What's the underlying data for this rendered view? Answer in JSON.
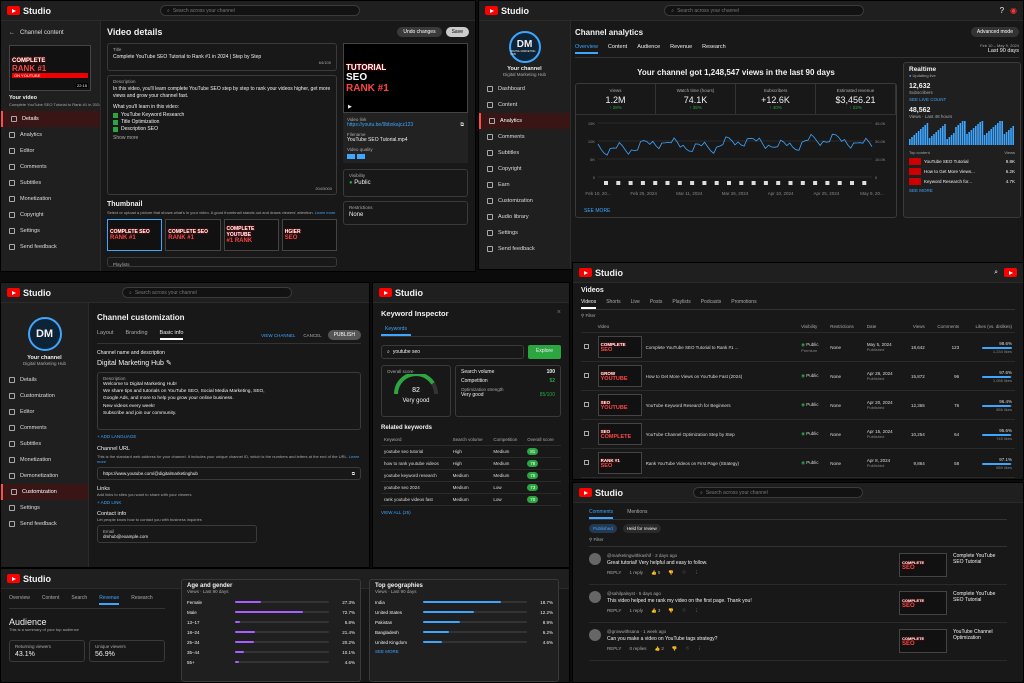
{
  "common": {
    "studio": "Studio",
    "search_placeholder": "Search across your channel"
  },
  "p1": {
    "back_label": "Channel content",
    "title": "Video details",
    "undo": "Undo changes",
    "save": "Save",
    "your_video": "Your video",
    "video_short": "Complete YouTube SEO Tutorial to Rank #1 in 2024 | Step by Step",
    "nav": [
      "Details",
      "Analytics",
      "Editor",
      "Comments",
      "Subtitles",
      "Monetization",
      "Copyright",
      "Settings",
      "Send feedback"
    ],
    "title_label": "Title",
    "title_value": "Complete YouTube SEO Tutorial to Rank #1 in 2024 | Step by Step",
    "title_count": "64/100",
    "desc_label": "Description",
    "desc_intro": "In this video, you'll learn complete YouTube SEO step by step to rank your videos higher, get more views and grow your channel fast.",
    "desc_learn": "What you'll learn in this video:",
    "desc_items": [
      "YouTube Keyword Research",
      "Title Optimization",
      "Description SEO"
    ],
    "show_more": "Show more",
    "desc_count": "204/5000",
    "thumb_title": "Thumbnail",
    "thumb_desc": "Select or upload a picture that shows what's in your video. A good thumbnail stands out and draws viewers' attention.",
    "learn_more": "Learn more",
    "link_label": "Video link",
    "link_value": "https://youtu.be/9bbxkajcz123",
    "file_label": "Filename",
    "file_value": "YouTube SEO Tutorial.mp4",
    "quality_label": "Video quality",
    "vis_label": "Visibility",
    "vis_value": "Public",
    "restr_label": "Restrictions",
    "restr_value": "None",
    "playlist_label": "Playlists",
    "thumb_words": {
      "a": "COMPLETE",
      "b": "TUTORIAL",
      "c": "SEO",
      "d": "RANK #1",
      "e": "ON YOUTUBE"
    },
    "timecode": "22:15",
    "thumb_opts": [
      [
        "COMPLETE SEO",
        "RANK #1"
      ],
      [
        "COMPLETE SEO",
        "RANK #1"
      ],
      [
        "COMPLETE YOUTUBE",
        "#1 RANK"
      ],
      [
        "HGIER",
        "SEO"
      ]
    ]
  },
  "p2": {
    "title": "Channel analytics",
    "adv": "Advanced mode",
    "tabs": [
      "Overview",
      "Content",
      "Audience",
      "Revenue",
      "Research"
    ],
    "date_range": "Feb 10 – May 9, 2024",
    "period": "Last 90 days",
    "headline": "Your channel got 1,248,547 views in the last 90 days",
    "your_channel": "Your channel",
    "channel_name": "Digital Marketing Hub",
    "initials": "DM",
    "logo_sub": "DIGITAL MARKETING HUB",
    "nav": [
      "Dashboard",
      "Content",
      "Analytics",
      "Comments",
      "Subtitles",
      "Copyright",
      "Earn",
      "Customization",
      "Audio library",
      "Settings",
      "Send feedback"
    ],
    "stats": [
      {
        "label": "Views",
        "value": "1.2M",
        "delta": "28%"
      },
      {
        "label": "Watch time (hours)",
        "value": "74.1K",
        "delta": "35%"
      },
      {
        "label": "Subscribers",
        "value": "+12.6K",
        "delta": "40%"
      },
      {
        "label": "Estimated revenue",
        "value": "$3,456.21",
        "delta": "22%"
      }
    ],
    "chart_xticks": [
      "Feb 10, 20...",
      "Feb 25, 2024",
      "Mar 11, 2024",
      "Mar 26, 2024",
      "Apr 10, 2024",
      "Apr 25, 2024",
      "May 9, 20..."
    ],
    "chart_yleft": [
      "15K",
      "10K",
      "5K",
      "0"
    ],
    "chart_yright": [
      "45.0K",
      "30.0K",
      "15.0K",
      "0"
    ],
    "see_more": "SEE MORE",
    "realtime": {
      "title": "Realtime",
      "sub": "Updating live",
      "subs": "12,632",
      "subs_label": "Subscribers",
      "see_live": "SEE LIVE COUNT",
      "views": "48,562",
      "views_label": "Views · Last 48 hours",
      "top": "Top content",
      "top_views": "Views",
      "items": [
        [
          "YouTube SEO Tutorial",
          "9.8K"
        ],
        [
          "How to Get More Views...",
          "6.2K"
        ],
        [
          "Keyword Research for...",
          "4.7K"
        ]
      ],
      "more": "SEE MORE"
    }
  },
  "p3": {
    "title": "Channel customization",
    "tabs": [
      "Layout",
      "Branding",
      "Basic info"
    ],
    "view": "VIEW CHANNEL",
    "cancel": "CANCEL",
    "publish": "PUBLISH",
    "your_channel": "Your channel",
    "channel_name": "Digital Marketing Hub",
    "initials": "DM",
    "nav": [
      "Details",
      "Customization",
      "Editor",
      "Comments",
      "Subtitles",
      "Monetization",
      "Demonetization",
      "Customization",
      "Settings",
      "Send feedback"
    ],
    "name_label": "Channel name and description",
    "name": "Digital Marketing Hub",
    "desc_label": "Description",
    "desc": [
      "Welcome to Digital Marketing Hub!",
      "We share tips and tutorials on YouTube SEO, Social Media Marketing, SEO,",
      "Google Ads, and more to help you grow your online business.",
      "New videos every week!",
      "Subscribe and join our community."
    ],
    "add_lang": "ADD LANGUAGE",
    "url_label": "Channel URL",
    "url_desc": "This is the standard web address for your channel. It includes your unique channel ID, which is the numbers and letters at the end of the URL.",
    "learn_more": "Learn more",
    "url": "https://www.youtube.com/@digitalmarketinghub",
    "links_label": "Links",
    "links_desc": "Add links to sites you want to share with your viewers",
    "add_link": "ADD LINK",
    "contact_label": "Contact info",
    "contact_desc": "Let people know how to contact you with business inquiries",
    "email_label": "Email",
    "email": "dmhub@example.com"
  },
  "p4": {
    "title": "Keyword Inspector",
    "tab": "Keywords",
    "query": "youtube seo",
    "explore": "Explore",
    "overall": "Overall score",
    "score": "82",
    "score_sub": "/100",
    "verdict": "Very good",
    "rows": [
      [
        "Search volume",
        "100"
      ],
      [
        "Competition",
        "52"
      ]
    ],
    "opt_label": "Optimization strength",
    "opt_verdict": "Very good",
    "opt_score": "85/100",
    "related": "Related keywords",
    "cols": [
      "Keyword",
      "Search volume",
      "Competition",
      "Overall score"
    ],
    "kws": [
      [
        "youtube seo tutorial",
        "High",
        "Medium",
        "81"
      ],
      [
        "how to rank youtube videos",
        "High",
        "Medium",
        "78"
      ],
      [
        "youtube keyword research",
        "Medium",
        "Medium",
        "75"
      ],
      [
        "youtube seo 2024",
        "Medium",
        "Low",
        "73"
      ],
      [
        "rank youtube videos fast",
        "Medium",
        "Low",
        "70"
      ]
    ],
    "view_all": "VIEW ALL (25)"
  },
  "p5": {
    "title": "Videos",
    "tabs": [
      "Videos",
      "Shorts",
      "Live",
      "Posts",
      "Playlists",
      "Podcasts",
      "Promotions"
    ],
    "filter": "Filter",
    "cols": [
      "Video",
      "Visibility",
      "Restrictions",
      "Date",
      "Views",
      "Comments",
      "Likes (vs. dislikes)"
    ],
    "rows": [
      {
        "title": "Complete YouTube SEO Tutorial to Rank #1 ...",
        "vis": "Public",
        "vis_sub": "Premium",
        "restr": "None",
        "date": "May 5, 2024",
        "date_sub": "Published",
        "views": "18,642",
        "comments": "123",
        "likes": "98.6%",
        "likes_sub": "1,234 likes",
        "t": [
          "COMPLETE",
          "SEO"
        ]
      },
      {
        "title": "How to Get More Views on YouTube Fast (2024)",
        "vis": "Public",
        "vis_sub": "",
        "restr": "None",
        "date": "Apr 28, 2024",
        "date_sub": "Published",
        "views": "15,872",
        "comments": "96",
        "likes": "97.6%",
        "likes_sub": "1,056 likes",
        "t": [
          "GROW",
          "YOUTUBE"
        ]
      },
      {
        "title": "YouTube Keyword Research for Beginners",
        "vis": "Public",
        "vis_sub": "",
        "restr": "None",
        "date": "Apr 20, 2024",
        "date_sub": "Published",
        "views": "12,365",
        "comments": "76",
        "likes": "96.4%",
        "likes_sub": "856 likes",
        "t": [
          "SEO",
          "YOUTUBE"
        ]
      },
      {
        "title": "YouTube Channel Optimization Step by Step",
        "vis": "Public",
        "vis_sub": "",
        "restr": "None",
        "date": "Apr 15, 2024",
        "date_sub": "Published",
        "views": "10,254",
        "comments": "64",
        "likes": "95.6%",
        "likes_sub": "745 likes",
        "t": [
          "SEO",
          "COMPLETE"
        ]
      },
      {
        "title": "Rank YouTube Videos on First Page (Strategy)",
        "vis": "Public",
        "vis_sub": "",
        "restr": "None",
        "date": "Apr 8, 2024",
        "date_sub": "Published",
        "views": "9,864",
        "comments": "58",
        "likes": "97.1%",
        "likes_sub": "689 likes",
        "t": [
          "RANK #1",
          "SEO"
        ]
      }
    ]
  },
  "p6": {
    "tabs": [
      "Overview",
      "Content",
      "Search",
      "Revenue",
      "Research"
    ],
    "title": "Audience",
    "sub": "This is a summary of your top audience",
    "returning_label": "Returning viewers",
    "returning": "43.1%",
    "unique_label": "Unique viewers",
    "unique": "56.9%",
    "age": {
      "title": "Age and gender",
      "sub": "Views · Last 90 days",
      "rows": [
        [
          "Female",
          "27.3%",
          27.3
        ],
        [
          "Male",
          "72.7%",
          72.7
        ],
        [
          "13–17",
          "5.8%",
          5.8
        ],
        [
          "18–24",
          "21.4%",
          21.4
        ],
        [
          "25–34",
          "20.2%",
          20.2
        ],
        [
          "35–44",
          "10.1%",
          10.1
        ],
        [
          "55+",
          "4.6%",
          4.6
        ]
      ]
    },
    "geo": {
      "title": "Top geographies",
      "sub": "Views · Last 90 days",
      "rows": [
        [
          "India",
          "18.7%",
          18.7
        ],
        [
          "United States",
          "12.2%",
          12.2
        ],
        [
          "Pakistan",
          "8.9%",
          8.9
        ],
        [
          "Bangladesh",
          "6.2%",
          6.2
        ],
        [
          "United Kingdom",
          "4.6%",
          4.6
        ]
      ],
      "more": "SEE MORE"
    }
  },
  "p7": {
    "tabs": [
      "Comments",
      "Mentions"
    ],
    "filters": [
      "Published",
      "Held for review"
    ],
    "filter": "Filter",
    "items": [
      {
        "user": "@marketingwithkashif",
        "time": "2 days ago",
        "text": "Great tutorial! Very helpful and easy to follow.",
        "likes": "5",
        "replies": "1 reply",
        "video": "Complete YouTube SEO Tutorial"
      },
      {
        "user": "@sahilpalsyst",
        "time": "5 days ago",
        "text": "This video helped me rank my video on the first page. Thank you!",
        "likes": "3",
        "replies": "1 reply",
        "video": "Complete YouTube SEO Tutorial"
      },
      {
        "user": "@growwithsana",
        "time": "1 week ago",
        "text": "Can you make a video on YouTube tags strategy?",
        "likes": "2",
        "replies": "0 replies",
        "video": "YouTube Channel Optimization"
      }
    ],
    "reply": "REPLY"
  },
  "colors": {
    "accent": "#3ea6ff",
    "brand": "#ff0000",
    "success": "#2ba640",
    "purple": "#a75fff"
  }
}
